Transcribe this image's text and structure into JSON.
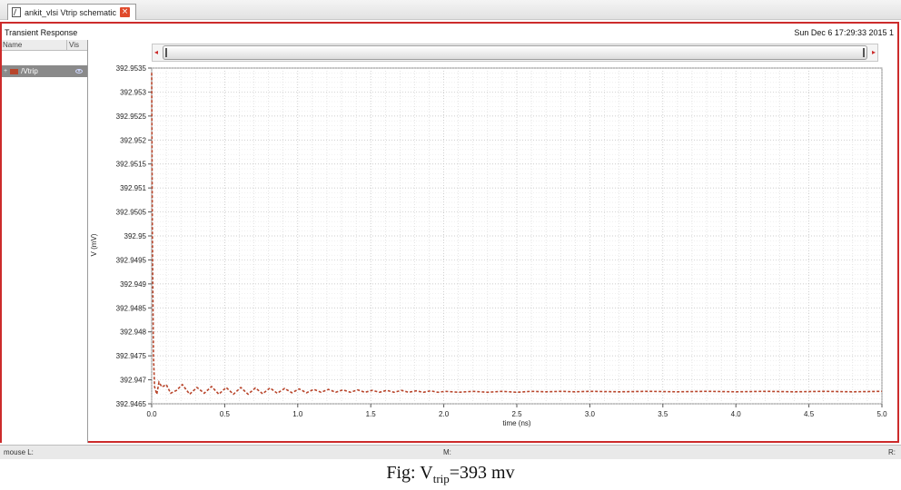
{
  "tab": {
    "label": "ankit_vlsi Vtrip schematic",
    "doc_icon": "schematic-doc-icon",
    "close_icon": "close-icon"
  },
  "plot": {
    "title": "Transient Response",
    "timestamp": "Sun Dec 6 17:29:33 2015  1"
  },
  "signal_panel": {
    "col_name": "Name",
    "col_vis": "Vis",
    "signals": [
      {
        "name": "/Vtrip",
        "color": "#b8452b"
      }
    ]
  },
  "status_bar": {
    "left": "mouse L:",
    "mid": "M:",
    "right": "R:"
  },
  "caption": {
    "prefix": "Fig: V",
    "sub": "trip",
    "suffix": "=393 mv"
  },
  "chart_data": {
    "type": "line",
    "xlabel": "time (ns)",
    "ylabel": "V (mV)",
    "xlim": [
      0.0,
      5.0
    ],
    "ylim": [
      392.9465,
      392.9535
    ],
    "x_ticks": [
      "0.0",
      "0.5",
      "1.0",
      "1.5",
      "2.0",
      "2.5",
      "3.0",
      "3.5",
      "4.0",
      "4.5",
      "5.0"
    ],
    "y_ticks": [
      "392.9465",
      "392.947",
      "392.9475",
      "392.948",
      "392.9485",
      "392.949",
      "392.9495",
      "392.95",
      "392.9505",
      "392.951",
      "392.9515",
      "392.952",
      "392.9525",
      "392.953",
      "392.9535"
    ],
    "grid": true,
    "series": [
      {
        "name": "/Vtrip",
        "color": "#b8452b",
        "x": [
          0.0,
          0.005,
          0.012,
          0.02,
          0.035,
          0.05,
          0.07,
          0.1,
          0.13,
          0.17,
          0.21,
          0.26,
          0.31,
          0.36,
          0.41,
          0.46,
          0.51,
          0.56,
          0.61,
          0.66,
          0.71,
          0.76,
          0.81,
          0.86,
          0.91,
          0.96,
          1.01,
          1.06,
          1.11,
          1.16,
          1.21,
          1.26,
          1.31,
          1.36,
          1.41,
          1.46,
          1.51,
          1.56,
          1.61,
          1.66,
          1.71,
          1.76,
          1.81,
          1.86,
          1.91,
          1.96,
          2.01,
          2.1,
          2.2,
          2.3,
          2.4,
          2.5,
          2.6,
          2.7,
          2.8,
          2.9,
          3.0,
          3.2,
          3.4,
          3.6,
          3.8,
          4.0,
          4.2,
          4.4,
          4.6,
          4.8,
          5.0
        ],
        "y": [
          392.9534,
          392.95,
          392.9475,
          392.94685,
          392.9467,
          392.94695,
          392.94685,
          392.9469,
          392.94672,
          392.94678,
          392.9469,
          392.9467,
          392.94684,
          392.94672,
          392.94686,
          392.9467,
          392.94684,
          392.9467,
          392.94684,
          392.9467,
          392.94683,
          392.94671,
          392.94683,
          392.94672,
          392.94682,
          392.94673,
          392.94681,
          392.94673,
          392.9468,
          392.94674,
          392.9468,
          392.94674,
          392.94679,
          392.94674,
          392.94679,
          392.94674,
          392.94678,
          392.94674,
          392.94678,
          392.94674,
          392.94678,
          392.94674,
          392.94677,
          392.94674,
          392.94677,
          392.94674,
          392.94676,
          392.94674,
          392.94676,
          392.94674,
          392.94676,
          392.94674,
          392.94676,
          392.94675,
          392.94676,
          392.94675,
          392.94676,
          392.94675,
          392.94676,
          392.94675,
          392.94676,
          392.94675,
          392.94676,
          392.94675,
          392.94676,
          392.94675,
          392.94676
        ]
      }
    ]
  }
}
